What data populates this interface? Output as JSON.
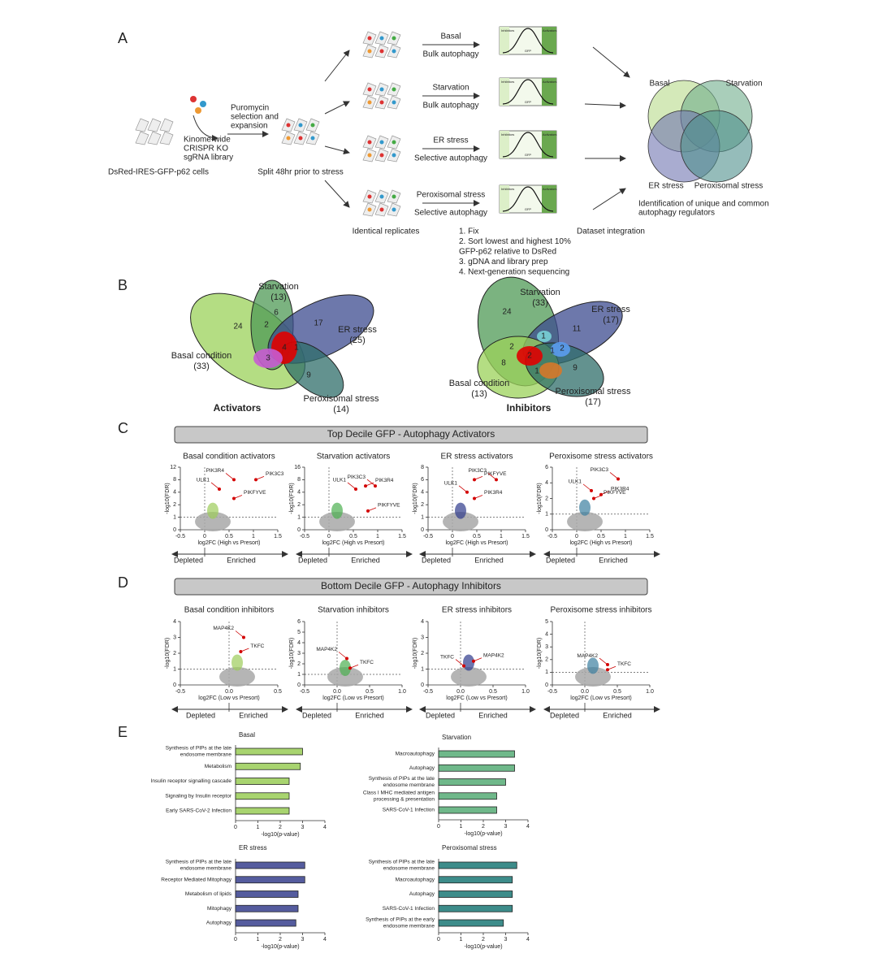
{
  "panel_a": {
    "letter": "A",
    "cells": "DsRed-IRES-GFP-p62 cells",
    "library": [
      "Kinome-wide",
      "CRISPR KO",
      "sgRNA library"
    ],
    "selection": [
      "Puromycin",
      "selection and",
      "expansion"
    ],
    "split": "Split 48hr prior to stress",
    "conditions": [
      {
        "name": "Basal",
        "kind": "Bulk autophagy"
      },
      {
        "name": "Starvation",
        "kind": "Bulk autophagy"
      },
      {
        "name": "ER stress",
        "kind": "Selective autophagy"
      },
      {
        "name": "Peroxisomal stress",
        "kind": "Selective autophagy"
      }
    ],
    "facs": {
      "left": "Inhibitors",
      "right": "Activators",
      "axis": "GFP"
    },
    "replicates": "Identical replicates",
    "steps": [
      "1. Fix",
      "2. Sort lowest and highest 10%",
      "GFP-p62 relative to DsRed",
      "3. gDNA and library prep",
      "4. Next-generation sequencing"
    ],
    "integration": "Dataset integration",
    "venn_labels": [
      "Basal",
      "Starvation",
      "ER stress",
      "Peroxisomal stress"
    ],
    "result": [
      "Identification of unique and common",
      "autophagy regulators"
    ]
  },
  "panel_b": {
    "letter": "B",
    "venns": [
      {
        "title": "Activators",
        "sets": [
          {
            "name": "Starvation",
            "count": "(13)"
          },
          {
            "name": "ER stress",
            "count": "(25)"
          },
          {
            "name": "Basal condition",
            "count": "(33)"
          },
          {
            "name": "Peroxisomal stress",
            "count": "(14)"
          }
        ],
        "regions": [
          "24",
          "6",
          "17",
          "2",
          "4",
          "1",
          "3",
          "9"
        ]
      },
      {
        "title": "Inhibitors",
        "sets": [
          {
            "name": "Starvation",
            "count": "(33)"
          },
          {
            "name": "ER stress",
            "count": "(17)"
          },
          {
            "name": "Basal condition",
            "count": "(13)"
          },
          {
            "name": "Peroxisomal stress",
            "count": "(17)"
          }
        ],
        "regions": [
          "24",
          "1",
          "11",
          "2",
          "1",
          "2",
          "8",
          "2",
          "1",
          "9"
        ]
      }
    ]
  },
  "panel_c": {
    "letter": "C",
    "banner": "Top Decile GFP - Autophagy Activators",
    "xlabel": "log2FC (High vs Presort)",
    "ylabel": "-log10(FDR)",
    "depleted": "Depleted",
    "enriched": "Enriched",
    "plots": [
      {
        "type": "scatter",
        "title": "Basal condition activators",
        "color": "#9ccc5a",
        "xlim": [
          -0.5,
          1.5
        ],
        "xticks": [
          -0.5,
          0,
          0.5,
          1,
          1.5
        ],
        "ylim": [
          0,
          12
        ],
        "yticks": [
          0,
          1,
          2,
          4,
          8,
          12
        ],
        "genes": [
          {
            "name": "PIK3R4",
            "x": 0.6,
            "y": 8
          },
          {
            "name": "PIK3C3",
            "x": 1.05,
            "y": 8
          },
          {
            "name": "ULK1",
            "x": 0.3,
            "y": 5
          },
          {
            "name": "PIKFYVE",
            "x": 0.6,
            "y": 3
          }
        ]
      },
      {
        "type": "scatter",
        "title": "Starvation activators",
        "color": "#4caf50",
        "xlim": [
          -0.5,
          1.5
        ],
        "xticks": [
          -0.5,
          0,
          0.5,
          1,
          1.5
        ],
        "ylim": [
          0,
          16
        ],
        "yticks": [
          0,
          1,
          2,
          4,
          8,
          16
        ],
        "genes": [
          {
            "name": "ULK1",
            "x": 0.55,
            "y": 5
          },
          {
            "name": "PIK3R4",
            "x": 0.75,
            "y": 6
          },
          {
            "name": "PIK3C3",
            "x": 0.95,
            "y": 6
          },
          {
            "name": "PIKFYVE",
            "x": 0.8,
            "y": 1.5
          }
        ]
      },
      {
        "type": "scatter",
        "title": "ER stress activators",
        "color": "#2f3b8c",
        "xlim": [
          -0.5,
          1.5
        ],
        "xticks": [
          -0.5,
          0,
          0.5,
          1,
          1.5
        ],
        "ylim": [
          0,
          8
        ],
        "yticks": [
          0,
          1,
          2,
          4,
          6,
          8
        ],
        "genes": [
          {
            "name": "ULK1",
            "x": 0.3,
            "y": 4
          },
          {
            "name": "PIKFYVE",
            "x": 0.45,
            "y": 6
          },
          {
            "name": "PIK3C3",
            "x": 0.9,
            "y": 6
          },
          {
            "name": "PIK3R4",
            "x": 0.45,
            "y": 3
          }
        ]
      },
      {
        "type": "scatter",
        "title": "Peroxisome stress activators",
        "color": "#3c7fa0",
        "xlim": [
          -0.5,
          1.5
        ],
        "xticks": [
          -0.5,
          0,
          0.5,
          1,
          1.5
        ],
        "ylim": [
          0,
          6
        ],
        "yticks": [
          0,
          1,
          2,
          4,
          6
        ],
        "genes": [
          {
            "name": "ULK1",
            "x": 0.3,
            "y": 3
          },
          {
            "name": "PIK3R4",
            "x": 0.5,
            "y": 2.5
          },
          {
            "name": "PIK3C3",
            "x": 0.85,
            "y": 4.5
          },
          {
            "name": "PIKFYVE",
            "x": 0.35,
            "y": 2
          }
        ]
      }
    ]
  },
  "panel_d": {
    "letter": "D",
    "banner": "Bottom Decile GFP - Autophagy Inhibitors",
    "xlabel": "log2FC (Low vs Presort)",
    "ylabel": "-log10(FDR)",
    "depleted": "Depleted",
    "enriched": "Enriched",
    "plots": [
      {
        "type": "scatter",
        "title": "Basal condition inhibitors",
        "color": "#9ccc5a",
        "xlim": [
          -0.5,
          0.5
        ],
        "xticks": [
          -0.5,
          {
            "value": 0,
            "label": "0.0"
          },
          0.5
        ],
        "ylim": [
          0,
          4
        ],
        "yticks": [
          0,
          1,
          2,
          3,
          4
        ],
        "genes": [
          {
            "name": "MAP4K2",
            "x": 0.15,
            "y": 3
          },
          {
            "name": "TKFC",
            "x": 0.12,
            "y": 2.1
          }
        ]
      },
      {
        "type": "scatter",
        "title": "Starvation inhibitors",
        "color": "#4caf50",
        "xlim": [
          -0.5,
          1
        ],
        "xticks": [
          -0.5,
          {
            "value": 0,
            "label": "0.0"
          },
          0.5,
          {
            "value": 1,
            "label": "1.0"
          }
        ],
        "ylim": [
          0,
          6
        ],
        "yticks": [
          0,
          1,
          2,
          3,
          4,
          5,
          6
        ],
        "genes": [
          {
            "name": "MAP4K2",
            "x": 0.15,
            "y": 2.5
          },
          {
            "name": "TKFC",
            "x": 0.2,
            "y": 1.6
          }
        ]
      },
      {
        "type": "scatter",
        "title": "ER stress inhibitors",
        "color": "#2f3b8c",
        "xlim": [
          -0.5,
          1
        ],
        "xticks": [
          -0.5,
          {
            "value": 0,
            "label": "0.0"
          },
          0.5,
          {
            "value": 1,
            "label": "1.0"
          }
        ],
        "ylim": [
          0,
          4
        ],
        "yticks": [
          0,
          1,
          2,
          3,
          4
        ],
        "genes": [
          {
            "name": "TKFC",
            "x": 0.05,
            "y": 1.2
          },
          {
            "name": "MAP4K2",
            "x": 0.2,
            "y": 1.5
          }
        ]
      },
      {
        "type": "scatter",
        "title": "Peroxisome stress inhibitors",
        "color": "#3c7fa0",
        "xlim": [
          -0.5,
          1
        ],
        "xticks": [
          -0.5,
          {
            "value": 0,
            "label": "0.0"
          },
          0.5,
          {
            "value": 1,
            "label": "1.0"
          }
        ],
        "ylim": [
          0,
          5
        ],
        "yticks": [
          0,
          1,
          2,
          3,
          4,
          5
        ],
        "genes": [
          {
            "name": "MAP4K2",
            "x": 0.35,
            "y": 1.6
          },
          {
            "name": "TKFC",
            "x": 0.35,
            "y": 1.2
          }
        ]
      }
    ]
  },
  "panel_e": {
    "letter": "E",
    "xlabel": "-log10(p-value)",
    "charts": [
      {
        "type": "bar",
        "title": "Basal",
        "color": "#a8d46f",
        "xlim": [
          0,
          4
        ],
        "xticks": [
          0,
          1,
          2,
          3,
          4
        ],
        "categories": [
          [
            "Synthesis of PIPs at the late",
            "endosome membrane"
          ],
          [
            "Metabolism"
          ],
          [
            "Insulin receptor signalling cascade"
          ],
          [
            "Signaling by Insulin receptor"
          ],
          [
            "Early SARS-CoV-2 Infection"
          ]
        ],
        "values": [
          3,
          2.9,
          2.4,
          2.4,
          2.4
        ]
      },
      {
        "type": "bar",
        "title": "Starvation",
        "color": "#6fb88a",
        "xlim": [
          0,
          4
        ],
        "xticks": [
          0,
          1,
          2,
          3,
          4
        ],
        "categories": [
          [
            "Macroautophagy"
          ],
          [
            "Autophagy"
          ],
          [
            "Synthesis of PIPs at the late",
            "endosome membrane"
          ],
          [
            "Class I MHC mediated antigen",
            "processing & presentation"
          ],
          [
            "SARS-CoV-1 Infection"
          ]
        ],
        "values": [
          3.4,
          3.4,
          3,
          2.6,
          2.6
        ]
      },
      {
        "type": "bar",
        "title": "ER stress",
        "color": "#555c9e",
        "xlim": [
          0,
          4
        ],
        "xticks": [
          0,
          1,
          2,
          3,
          4
        ],
        "categories": [
          [
            "Synthesis of PIPs at the late",
            "endosome membrane"
          ],
          [
            "Receptor Mediated Mitophagy"
          ],
          [
            "Metabolism of lipids"
          ],
          [
            "Mitophagy"
          ],
          [
            "Autophagy"
          ]
        ],
        "values": [
          3.1,
          3.1,
          2.8,
          2.8,
          2.7
        ]
      },
      {
        "type": "bar",
        "title": "Peroxisomal stress",
        "color": "#3d8c8a",
        "xlim": [
          0,
          4
        ],
        "xticks": [
          0,
          1,
          2,
          3,
          4
        ],
        "categories": [
          [
            "Synthesis of PIPs at the late",
            "endosome membrane"
          ],
          [
            "Macroautophagy"
          ],
          [
            "Autophagy"
          ],
          [
            "SARS-CoV-1 Infection"
          ],
          [
            "Synthesis of PIPs at the early",
            "endosome membrane"
          ]
        ],
        "values": [
          3.5,
          3.3,
          3.3,
          3.3,
          2.9
        ]
      }
    ]
  }
}
